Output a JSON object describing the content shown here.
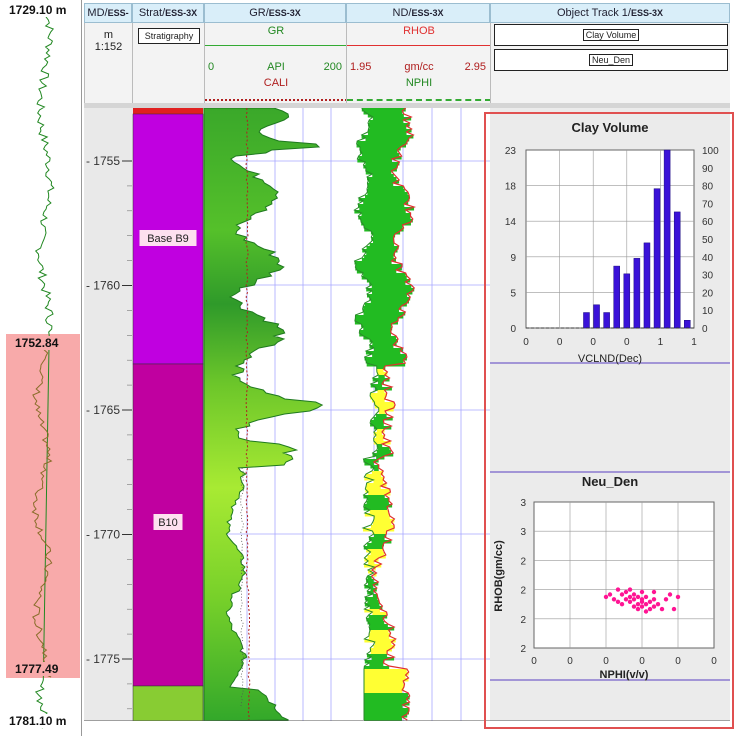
{
  "overview": {
    "top_depth": "1729.10 m",
    "bottom_depth": "1781.10 m",
    "highlight_top": "1752.84",
    "highlight_bottom": "1777.49"
  },
  "headers": {
    "md": {
      "title": "MD/",
      "well": "ESS-3X",
      "unit": "m",
      "scale": "1:152"
    },
    "strat": {
      "title": "Strat/",
      "well": "ESS-3X",
      "button": "Stratigraphy"
    },
    "gr": {
      "title": "GR/",
      "well": "ESS-3X",
      "curve1": "GR",
      "min": "0",
      "unit": "API",
      "max": "200",
      "curve2": "CALI"
    },
    "nd": {
      "title": "ND/",
      "well": "ESS-3X",
      "curve1": "RHOB",
      "min": "1.95",
      "unit": "gm/cc",
      "max": "2.95",
      "curve2": "NPHI"
    },
    "obj": {
      "title": "Object Track 1/",
      "well": "ESS-3X",
      "button1": "Clay Volume",
      "button2": "Neu_Den"
    }
  },
  "depth_ticks": [
    "1755",
    "1760",
    "1765",
    "1770",
    "1775"
  ],
  "zones": [
    {
      "name": "Base B9",
      "color": "#c000e0"
    },
    {
      "name": "B10",
      "color": "#c000a0"
    }
  ],
  "colors": {
    "accent_red": "#e03030",
    "gr_fill": "#66cc22",
    "nd_fill_green": "#22bb22",
    "nd_fill_yellow": "#ffff33",
    "histogram_bar": "#3a12d8",
    "crossplot_point": "#ff1493"
  },
  "clay_volume": {
    "title": "Clay Volume",
    "xlabel": "VCLND(Dec)",
    "left_ticks": [
      "23",
      "18",
      "14",
      "9",
      "5",
      "0"
    ],
    "right_ticks": [
      "100",
      "90",
      "80",
      "70",
      "60",
      "50",
      "40",
      "30",
      "20",
      "10",
      "0"
    ],
    "x_ticks": [
      "0",
      "0",
      "0",
      "0",
      "1",
      "1"
    ]
  },
  "neu_den": {
    "title": "Neu_Den",
    "xlabel": "NPHI(v/v)",
    "ylabel": "RHOB(gm/cc)",
    "y_ticks": [
      "3",
      "3",
      "2",
      "2",
      "2",
      "2"
    ],
    "x_ticks": [
      "0",
      "0",
      "0",
      "0",
      "0",
      "0"
    ]
  },
  "chart_data": [
    {
      "type": "bar",
      "title": "Clay Volume",
      "xlabel": "VCLND(Dec)",
      "ylabel": "",
      "x": [
        0.3,
        0.36,
        0.42,
        0.48,
        0.54,
        0.6,
        0.66,
        0.72,
        0.78,
        0.84,
        0.9,
        0.96
      ],
      "values": [
        0.0,
        2.0,
        3.0,
        2.0,
        8.0,
        7.0,
        9.0,
        11.0,
        18.0,
        23.0,
        15.0,
        1.0
      ],
      "ylim": [
        0,
        23
      ],
      "grid": true
    },
    {
      "type": "scatter",
      "title": "Neu_Den",
      "xlabel": "NPHI(v/v)",
      "ylabel": "RHOB(gm/cc)",
      "note_points": "cluster near NPHI 0.20-0.30, RHOB 2.35-2.45",
      "points": [
        [
          0.18,
          2.41
        ],
        [
          0.19,
          2.42
        ],
        [
          0.2,
          2.4
        ],
        [
          0.21,
          2.39
        ],
        [
          0.22,
          2.42
        ],
        [
          0.22,
          2.38
        ],
        [
          0.23,
          2.4
        ],
        [
          0.23,
          2.43
        ],
        [
          0.24,
          2.39
        ],
        [
          0.24,
          2.41
        ],
        [
          0.25,
          2.37
        ],
        [
          0.25,
          2.4
        ],
        [
          0.25,
          2.42
        ],
        [
          0.26,
          2.38
        ],
        [
          0.26,
          2.41
        ],
        [
          0.26,
          2.36
        ],
        [
          0.27,
          2.39
        ],
        [
          0.27,
          2.4
        ],
        [
          0.27,
          2.37
        ],
        [
          0.28,
          2.38
        ],
        [
          0.28,
          2.41
        ],
        [
          0.28,
          2.35
        ],
        [
          0.29,
          2.36
        ],
        [
          0.29,
          2.39
        ],
        [
          0.3,
          2.4
        ],
        [
          0.3,
          2.37
        ],
        [
          0.31,
          2.38
        ],
        [
          0.32,
          2.36
        ],
        [
          0.33,
          2.4
        ],
        [
          0.34,
          2.42
        ],
        [
          0.35,
          2.36
        ],
        [
          0.36,
          2.41
        ],
        [
          0.21,
          2.44
        ],
        [
          0.24,
          2.44
        ],
        [
          0.27,
          2.43
        ],
        [
          0.3,
          2.43
        ]
      ],
      "xlim": [
        0,
        0.45
      ],
      "ylim": [
        2.2,
        2.8
      ],
      "grid": true
    }
  ]
}
